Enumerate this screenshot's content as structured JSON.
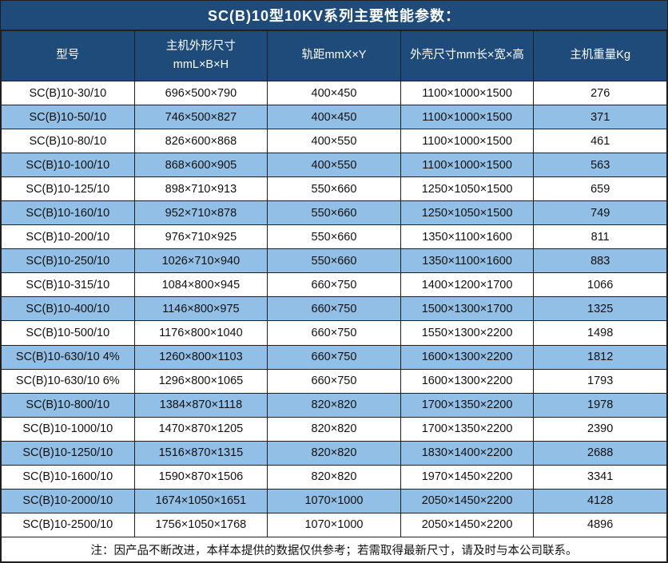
{
  "title": "SC(B)10型10KV系列主要性能参数：",
  "note": "注：因产品不断改进，本样本提供的数据仅供参考；若需取得最新尺寸，请及时与本公司联系。",
  "colors": {
    "header_bg": "#1E4B7A",
    "stripe_bg": "#92BFE6",
    "border": "#1f1f1f",
    "text": "#111111",
    "header_text": "#ffffff"
  },
  "table": {
    "columns": [
      "型号",
      "主机外形尺寸\nmmL×B×H",
      "轨距mmX×Y",
      "外壳尺寸mm长×宽×高",
      "主机重量Kg"
    ],
    "rows": [
      [
        "SC(B)10-30/10",
        "696×500×790",
        "400×450",
        "1100×1000×1500",
        "276"
      ],
      [
        "SC(B)10-50/10",
        "746×500×827",
        "400×450",
        "1100×1000×1500",
        "371"
      ],
      [
        "SC(B)10-80/10",
        "826×600×868",
        "400×550",
        "1100×1000×1500",
        "461"
      ],
      [
        "SC(B)10-100/10",
        "868×600×905",
        "400×550",
        "1100×1000×1500",
        "563"
      ],
      [
        "SC(B)10-125/10",
        "898×710×913",
        "550×660",
        "1250×1050×1500",
        "659"
      ],
      [
        "SC(B)10-160/10",
        "952×710×878",
        "550×660",
        "1250×1050×1500",
        "749"
      ],
      [
        "SC(B)10-200/10",
        "976×710×925",
        "550×660",
        "1350×1100×1600",
        "811"
      ],
      [
        "SC(B)10-250/10",
        "1026×710×940",
        "550×660",
        "1350×1100×1600",
        "883"
      ],
      [
        "SC(B)10-315/10",
        "1084×800×945",
        "660×750",
        "1400×1200×1700",
        "1066"
      ],
      [
        "SC(B)10-400/10",
        "1146×800×975",
        "660×750",
        "1500×1300×1700",
        "1325"
      ],
      [
        "SC(B)10-500/10",
        "1176×800×1040",
        "660×750",
        "1550×1300×2200",
        "1498"
      ],
      [
        "SC(B)10-630/10 4%",
        "1260×800×1103",
        "660×750",
        "1600×1300×2200",
        "1812"
      ],
      [
        "SC(B)10-630/10 6%",
        "1296×800×1065",
        "660×750",
        "1600×1300×2200",
        "1793"
      ],
      [
        "SC(B)10-800/10",
        "1384×870×1118",
        "820×820",
        "1700×1350×2200",
        "1978"
      ],
      [
        "SC(B)10-1000/10",
        "1470×870×1205",
        "820×820",
        "1700×1350×2200",
        "2390"
      ],
      [
        "SC(B)10-1250/10",
        "1516×870×1315",
        "820×820",
        "1830×1400×2200",
        "2688"
      ],
      [
        "SC(B)10-1600/10",
        "1590×870×1506",
        "820×820",
        "1970×1450×2200",
        "3341"
      ],
      [
        "SC(B)10-2000/10",
        "1674×1050×1651",
        "1070×1000",
        "2050×1450×2200",
        "4128"
      ],
      [
        "SC(B)10-2500/10",
        "1756×1050×1768",
        "1070×1000",
        "2050×1450×2200",
        "4896"
      ]
    ]
  }
}
